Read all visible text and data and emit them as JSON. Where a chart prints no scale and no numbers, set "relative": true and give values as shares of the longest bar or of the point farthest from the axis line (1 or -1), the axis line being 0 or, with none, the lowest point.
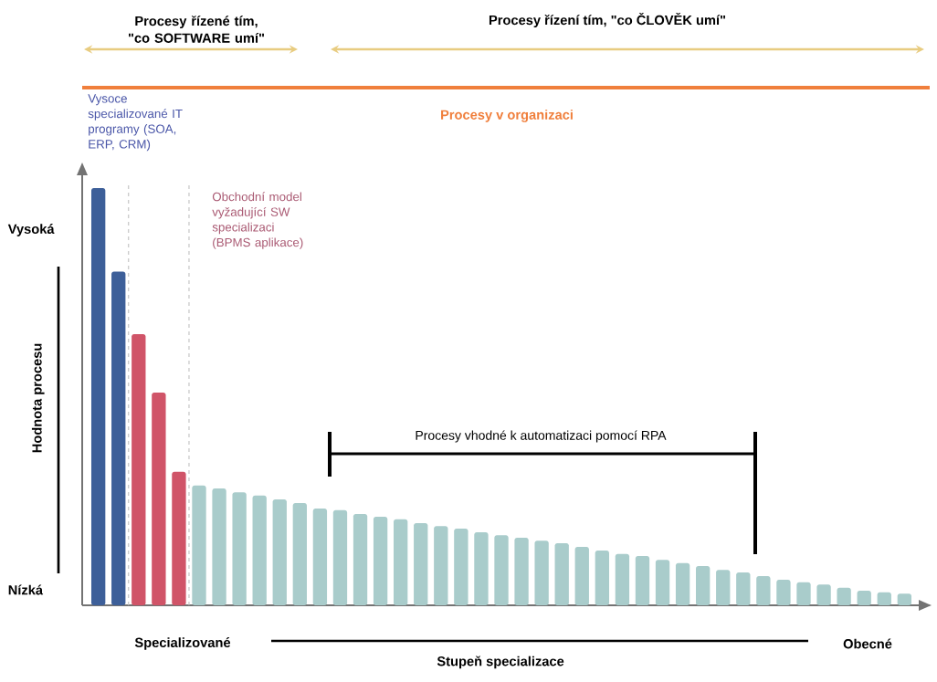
{
  "chart_data": {
    "type": "bar",
    "relative": true,
    "xlabel": "Stupeň specializace",
    "ylabel": "Hodnota procesu",
    "categories": [
      null,
      null,
      null,
      null,
      null,
      null,
      null,
      null,
      null,
      null,
      null,
      null,
      null,
      null,
      null,
      null,
      null,
      null,
      null,
      null,
      null,
      null,
      null,
      null,
      null,
      null,
      null,
      null,
      null,
      null,
      null,
      null,
      null,
      null,
      null,
      null,
      null,
      null,
      null,
      null,
      null
    ],
    "values": [
      1.0,
      0.8,
      0.65,
      0.51,
      0.32,
      0.287,
      0.28,
      0.271,
      0.263,
      0.254,
      0.245,
      0.232,
      0.228,
      0.219,
      0.212,
      0.206,
      0.197,
      0.19,
      0.184,
      0.175,
      0.168,
      0.162,
      0.155,
      0.149,
      0.14,
      0.131,
      0.123,
      0.118,
      0.109,
      0.101,
      0.094,
      0.085,
      0.079,
      0.07,
      0.061,
      0.055,
      0.05,
      0.042,
      0.035,
      0.031,
      0.028
    ],
    "colors": [
      "#3d5f99",
      "#3d5f99",
      "#d05468",
      "#d05468",
      "#d05468",
      "#a9cccb",
      "#a9cccb",
      "#a9cccb",
      "#a9cccb",
      "#a9cccb",
      "#a9cccb",
      "#a9cccb",
      "#a9cccb",
      "#a9cccb",
      "#a9cccb",
      "#a9cccb",
      "#a9cccb",
      "#a9cccb",
      "#a9cccb",
      "#a9cccb",
      "#a9cccb",
      "#a9cccb",
      "#a9cccb",
      "#a9cccb",
      "#a9cccb",
      "#a9cccb",
      "#a9cccb",
      "#a9cccb",
      "#a9cccb",
      "#a9cccb",
      "#a9cccb",
      "#a9cccb",
      "#a9cccb",
      "#a9cccb",
      "#a9cccb",
      "#a9cccb",
      "#a9cccb",
      "#a9cccb",
      "#a9cccb",
      "#a9cccb",
      "#a9cccb"
    ],
    "annotations": [
      "Procesy řízené tím, \"co SOFTWARE umí\"",
      "Procesy řízení tím, \"co ČLOVĚK umí\"",
      "Procesy v organizaci",
      "Vysoce specializované IT programy (SOA, ERP, CRM)",
      "Obchodní model vyžadující SW specializaci (BPMS aplikace)",
      "Procesy vhodné k automatizaci pomocí RPA",
      "Vysoká",
      "Nízká",
      "Specializované",
      "Obecné"
    ]
  }
}
